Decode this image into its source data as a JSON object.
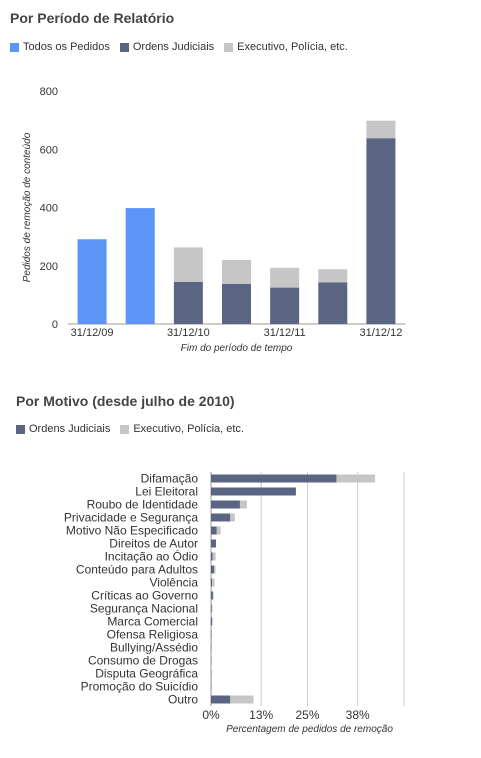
{
  "colors": {
    "all_requests": "#5c95f5",
    "court_orders": "#5a6584",
    "executive": "#c6c6c6",
    "axis": "#999999",
    "grid": "#cccccc",
    "text": "#333333"
  },
  "chart_data": [
    {
      "type": "bar",
      "stacked": true,
      "title": "Por Período de Relatório",
      "legend_position": "top-left",
      "legend": [
        "Todos os Pedidos",
        "Ordens Judiciais",
        "Executivo, Polícia, etc."
      ],
      "xlabel": "Fim do período de tempo",
      "ylabel": "Pedidos de remoção de conteúdo",
      "ylim": [
        0,
        800
      ],
      "yticks": [
        "0",
        "200",
        "400",
        "600",
        "800"
      ],
      "categories": [
        "31/12/09",
        "",
        "31/12/10",
        "",
        "31/12/11",
        "",
        "31/12/12"
      ],
      "series": [
        {
          "name": "Todos os Pedidos",
          "values": [
            291,
            398,
            0,
            0,
            0,
            0,
            0
          ]
        },
        {
          "name": "Ordens Judiciais",
          "values": [
            0,
            0,
            145,
            138,
            125,
            143,
            638
          ]
        },
        {
          "name": "Executivo, Polícia, etc.",
          "values": [
            0,
            0,
            118,
            82,
            68,
            45,
            60
          ]
        }
      ],
      "grid": false
    },
    {
      "type": "bar",
      "orientation": "horizontal",
      "stacked": true,
      "title": "Por Motivo (desde julho de 2010)",
      "legend_position": "top-left",
      "legend": [
        "Ordens Judiciais",
        "Executivo, Polícia, etc."
      ],
      "xlabel": "Percentagem de pedidos de remoção",
      "xlim": [
        0,
        50
      ],
      "xticks": [
        "0%",
        "13%",
        "25%",
        "38%"
      ],
      "categories": [
        "Difamação",
        "Lei Eleitoral",
        "Roubo de Identidade",
        "Privacidade e Segurança",
        "Motivo Não Especificado",
        "Direitos de Autor",
        "Incitação ao Ódio",
        "Conteúdo para Adultos",
        "Violência",
        "Críticas ao Governo",
        "Segurança Nacional",
        "Marca Comercial",
        "Ofensa Religiosa",
        "Bullying/Assédio",
        "Consumo de Drogas",
        "Disputa Geográfica",
        "Promoção do Suicídio",
        "Outro"
      ],
      "series": [
        {
          "name": "Ordens Judiciais",
          "values": [
            32.5,
            22,
            7.5,
            5,
            1.5,
            1.3,
            0.4,
            0.8,
            0.3,
            0.5,
            0.2,
            0.3,
            0.1,
            0.1,
            0.05,
            0.05,
            0.05,
            5
          ]
        },
        {
          "name": "Executivo, Polícia, etc.",
          "values": [
            10,
            0,
            1.8,
            1.2,
            1.0,
            0,
            0.8,
            0.4,
            0.6,
            0.2,
            0.2,
            0.1,
            0.1,
            0,
            0,
            0,
            0,
            6
          ]
        }
      ],
      "grid": true
    }
  ]
}
